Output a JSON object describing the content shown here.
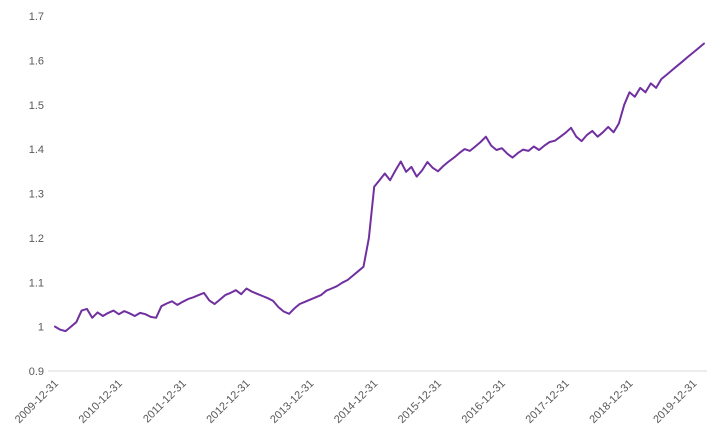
{
  "chart_data": {
    "type": "line",
    "title": "",
    "xlabel": "",
    "ylabel": "",
    "ylim": [
      0.9,
      1.7
    ],
    "grid": false,
    "legend": "none",
    "axis_color": "#d9d9d9",
    "tick_label_color": "#595959",
    "y_ticks": {
      "values": [
        0.9,
        1.0,
        1.1,
        1.2,
        1.3,
        1.4,
        1.5,
        1.6,
        1.7
      ],
      "labels": [
        "0.9",
        "1",
        "1.1",
        "1.2",
        "1.3",
        "1.4",
        "1.5",
        "1.6",
        "1.7"
      ]
    },
    "x_tick_labels": [
      "2009-12-31",
      "2010-12-31",
      "2011-12-31",
      "2012-12-31",
      "2013-12-31",
      "2014-12-31",
      "2015-12-31",
      "2016-12-31",
      "2017-12-31",
      "2018-12-31",
      "2019-12-31"
    ],
    "x_tick_every": 12,
    "x_note": "series values are monthly estimates read from the plot; index 0 = 2009-12-31, one point per month, tick every 12 points; line extends 2 months past last tick",
    "series": [
      {
        "name": "series-1",
        "color": "#7030a0",
        "width": 2,
        "values": [
          1.0,
          0.993,
          0.99,
          1.0,
          1.01,
          1.036,
          1.04,
          1.02,
          1.032,
          1.024,
          1.031,
          1.036,
          1.028,
          1.035,
          1.03,
          1.024,
          1.031,
          1.028,
          1.022,
          1.02,
          1.046,
          1.052,
          1.057,
          1.049,
          1.056,
          1.062,
          1.066,
          1.071,
          1.076,
          1.059,
          1.051,
          1.061,
          1.071,
          1.076,
          1.082,
          1.073,
          1.086,
          1.079,
          1.074,
          1.069,
          1.064,
          1.058,
          1.044,
          1.034,
          1.029,
          1.041,
          1.051,
          1.056,
          1.061,
          1.066,
          1.071,
          1.081,
          1.086,
          1.091,
          1.099,
          1.105,
          1.115,
          1.125,
          1.135,
          1.2,
          1.315,
          1.33,
          1.345,
          1.33,
          1.352,
          1.372,
          1.349,
          1.36,
          1.338,
          1.352,
          1.371,
          1.358,
          1.35,
          1.362,
          1.372,
          1.381,
          1.391,
          1.4,
          1.396,
          1.406,
          1.416,
          1.428,
          1.408,
          1.398,
          1.402,
          1.39,
          1.381,
          1.391,
          1.399,
          1.396,
          1.406,
          1.398,
          1.408,
          1.416,
          1.419,
          1.428,
          1.437,
          1.448,
          1.428,
          1.418,
          1.432,
          1.441,
          1.428,
          1.438,
          1.45,
          1.438,
          1.458,
          1.5,
          1.528,
          1.518,
          1.538,
          1.528,
          1.548,
          1.538,
          1.558,
          1.568,
          1.578,
          1.588,
          1.598,
          1.608,
          1.618,
          1.628,
          1.638
        ]
      }
    ]
  }
}
